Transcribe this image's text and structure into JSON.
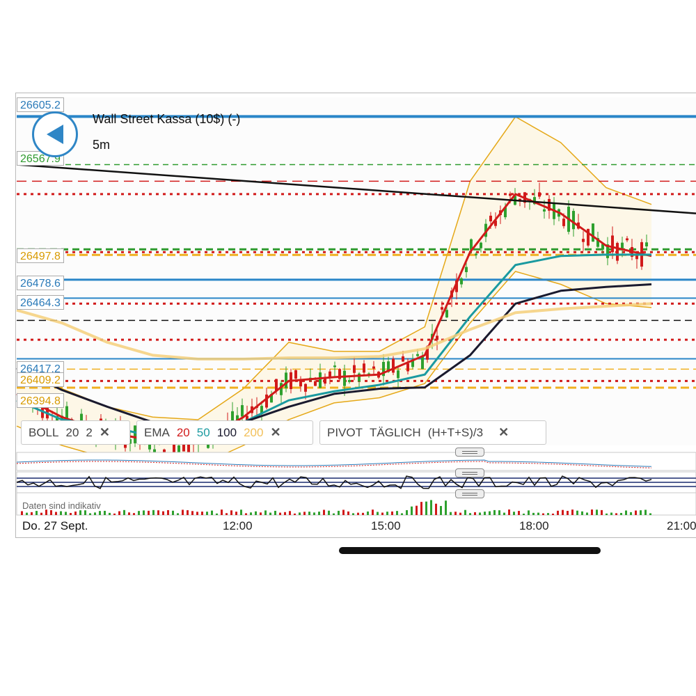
{
  "header": {
    "title": "Wall Street Kassa (10$) (-)",
    "timeframe": "5m"
  },
  "price_tags": [
    {
      "label": "26605.2",
      "color": "#2a7ab8"
    },
    {
      "label": "26567.9",
      "color": "#2e9a2e"
    },
    {
      "label": "26497.8",
      "color": "#d89a00"
    },
    {
      "label": "26478.6",
      "color": "#2a7ab8"
    },
    {
      "label": "26464.3",
      "color": "#2a7ab8"
    },
    {
      "label": "26417.2",
      "color": "#2a7ab8"
    },
    {
      "label": "26409.2",
      "color": "#d89a00"
    },
    {
      "label": "26394.8",
      "color": "#d89a00"
    }
  ],
  "legends": {
    "boll": {
      "name": "BOLL",
      "period": "20",
      "dev": "2",
      "close": "✕"
    },
    "ema": {
      "name": "EMA",
      "p1": "20",
      "p2": "50",
      "p3": "100",
      "p4": "200",
      "close": "✕"
    },
    "pivot": {
      "name": "PIVOT",
      "period": "TÄGLICH",
      "formula": "(H+T+S)/3",
      "close": "✕"
    }
  },
  "footer": {
    "note": "Daten sind indikativ",
    "date": "Do. 27 Sept.",
    "time_labels": [
      "12:00",
      "15:00",
      "18:00",
      "21:00"
    ]
  },
  "colors": {
    "ema20": "#d11a1a",
    "ema50": "#1a9aa0",
    "ema100": "#1a1a2e",
    "ema200": "#f5cf7a",
    "boll": "#e5a818",
    "blue_level": "#2a86c8",
    "pivot_red": "#d11a1a",
    "pivot_green": "#2e9a2e",
    "pivot_orange": "#f0b020"
  },
  "chart_data": {
    "type": "candlestick",
    "instrument": "Wall Street Kassa (10$) (-)",
    "interval": "5m",
    "x_ticks": [
      "12:00",
      "15:00",
      "18:00",
      "21:00"
    ],
    "ylim": [
      26350,
      26620
    ],
    "blue_levels": [
      26605.2,
      26478.6,
      26464.3,
      26417.2
    ],
    "pivot_levels": [
      26567.9,
      26497.8,
      26409.2,
      26394.8
    ],
    "trendline": {
      "start": 26567.9,
      "end": 26530
    },
    "ema": [
      {
        "name": "EMA 20",
        "values": [
          26390,
          26372,
          26360,
          26354,
          26352,
          26372,
          26400,
          26403,
          26405,
          26420,
          26500,
          26545,
          26530,
          26505,
          26497
        ]
      },
      {
        "name": "EMA 50",
        "values": [
          26385,
          26370,
          26365,
          26357,
          26354,
          26368,
          26385,
          26392,
          26397,
          26405,
          26450,
          26490,
          26497,
          26498,
          26498
        ]
      },
      {
        "name": "EMA 100",
        "values": [
          26410,
          26393,
          26380,
          26368,
          26362,
          26368,
          26380,
          26390,
          26394,
          26395,
          26420,
          26460,
          26470,
          26473,
          26475
        ]
      },
      {
        "name": "EMA 200",
        "values": [
          26455,
          26445,
          26430,
          26420,
          26417,
          26417,
          26418,
          26418,
          26419,
          26425,
          26440,
          26453,
          26456,
          26458,
          26460
        ]
      }
    ]
  }
}
